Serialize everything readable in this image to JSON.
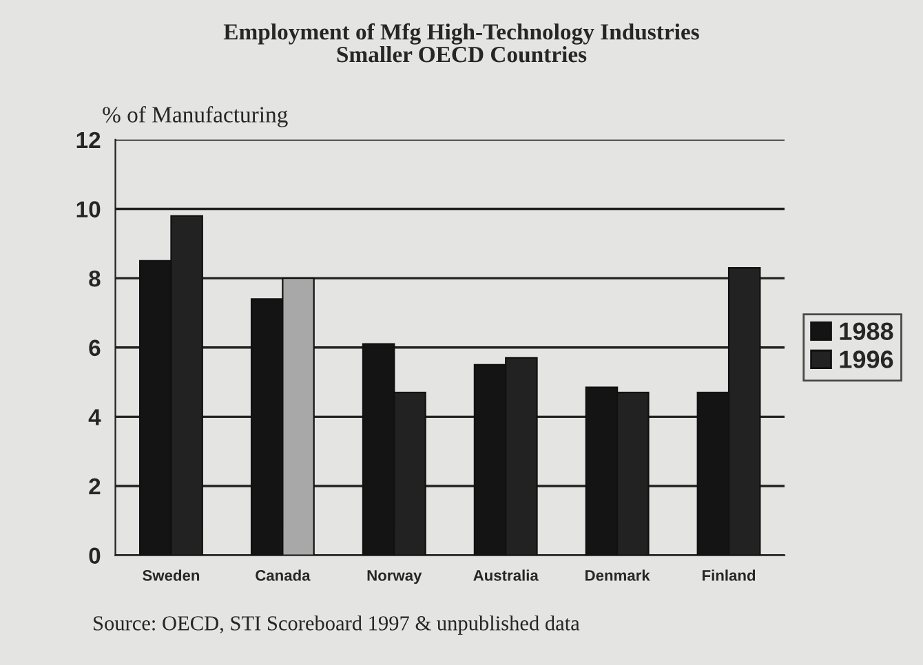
{
  "chart_data": {
    "type": "bar",
    "title": "Employment of Mfg High-Technology Industries\nSmaller OECD Countries",
    "ylabel": "% of Manufacturing",
    "categories": [
      "Sweden",
      "Canada",
      "Norway",
      "Australia",
      "Denmark",
      "Finland"
    ],
    "series": [
      {
        "name": "1988",
        "color": "#141414",
        "values": [
          8.5,
          7.4,
          6.1,
          5.5,
          4.85,
          4.7
        ]
      },
      {
        "name": "1996",
        "color": "#222222",
        "colors": [
          "#222222",
          "#a8a8a8",
          "#222222",
          "#222222",
          "#222222",
          "#222222"
        ],
        "values": [
          9.8,
          8.0,
          4.7,
          5.7,
          4.7,
          8.3
        ]
      }
    ],
    "ylim": [
      0,
      12
    ],
    "yticks": [
      0,
      2,
      4,
      6,
      8,
      10,
      12
    ],
    "grid": "y",
    "legend": "right",
    "annotations": [
      "Source: OECD, STI Scoreboard 1997 & unpublished data"
    ]
  }
}
